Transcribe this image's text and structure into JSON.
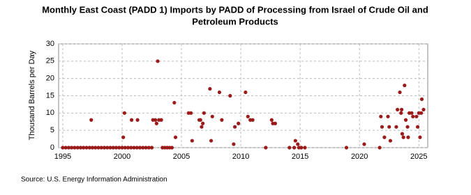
{
  "chart_data": {
    "type": "scatter",
    "title": [
      "Monthly East Coast (PADD 1) Imports by PADD of Processing from Israel of Crude Oil and",
      "Petroleum Products"
    ],
    "y_label": "Thousand Barrels per Day",
    "source": "Source: U.S. Energy Information Administration",
    "color": "#9b1b1b",
    "grid": true,
    "xlim": [
      1994.65,
      2025.75
    ],
    "xticks": [
      1995,
      2000,
      2005,
      2010,
      2015,
      2020,
      2025
    ],
    "ylim": [
      0,
      30
    ],
    "yticks": [
      0,
      5,
      10,
      15,
      20,
      25,
      30
    ],
    "x": [
      1995,
      1995.25,
      1995.5,
      1995.75,
      1996,
      1996.25,
      1996.5,
      1996.75,
      1997,
      1997.25,
      1997.5,
      1997.75,
      1998,
      1998.25,
      1998.5,
      1998.75,
      1999,
      1999.25,
      1999.5,
      1999.75,
      2000,
      2000.25,
      2000.5,
      2000.75,
      2001,
      2001.25,
      2001.5,
      2001.75,
      2002,
      2002.25,
      2002.5,
      1997.4,
      2000.2,
      2000.1,
      2000.8,
      2001.3,
      2002.6,
      2002.8,
      2002.9,
      2003.0,
      2003.1,
      2003.3,
      2003.4,
      2003.6,
      2003.8,
      2004.0,
      2004.2,
      2004.4,
      2004.5,
      2005.6,
      2005.8,
      2005.9,
      2006.5,
      2006.6,
      2006.7,
      2006.8,
      2006.9,
      2007.4,
      2007.5,
      2007.6,
      2008.2,
      2008.4,
      2009.1,
      2009.4,
      2009.5,
      2009.8,
      2010.4,
      2010.6,
      2010.8,
      2011.0,
      2012.1,
      2012.6,
      2012.7,
      2012.9,
      2014.1,
      2014.5,
      2014.6,
      2014.8,
      2014.9,
      2015.1,
      2015.4,
      2018.9,
      2020.4,
      2021.7,
      2021.8,
      2021.9,
      2022.1,
      2022.4,
      2022.5,
      2022.6,
      2023.1,
      2023.2,
      2023.4,
      2023.5,
      2023.55,
      2023.6,
      2023.7,
      2023.8,
      2023.9,
      2024.05,
      2024.1,
      2024.2,
      2024.4,
      2024.5,
      2024.8,
      2024.9,
      2025.0,
      2025.1,
      2025.2,
      2025.25,
      2025.4
    ],
    "values": [
      0,
      0,
      0,
      0,
      0,
      0,
      0,
      0,
      0,
      0,
      0,
      0,
      0,
      0,
      0,
      0,
      0,
      0,
      0,
      0,
      0,
      0,
      0,
      0,
      0,
      0,
      0,
      0,
      0,
      0,
      0,
      8,
      10,
      3,
      8,
      8,
      8,
      8,
      7,
      25,
      8,
      8,
      0,
      0,
      0,
      0,
      0,
      13,
      3,
      10,
      10,
      2,
      8,
      8,
      6,
      7,
      10,
      17,
      2,
      9,
      16,
      8,
      15,
      1,
      6,
      7,
      16,
      9,
      8,
      8,
      0,
      8,
      7,
      7,
      0,
      0,
      2,
      1,
      0,
      0,
      0,
      0,
      1,
      0,
      9,
      6,
      3,
      9,
      6,
      2,
      6,
      11,
      16,
      10,
      11,
      4,
      3,
      18,
      8,
      6,
      3,
      10,
      10,
      9,
      9,
      6,
      10,
      3,
      10,
      14,
      11
    ]
  }
}
